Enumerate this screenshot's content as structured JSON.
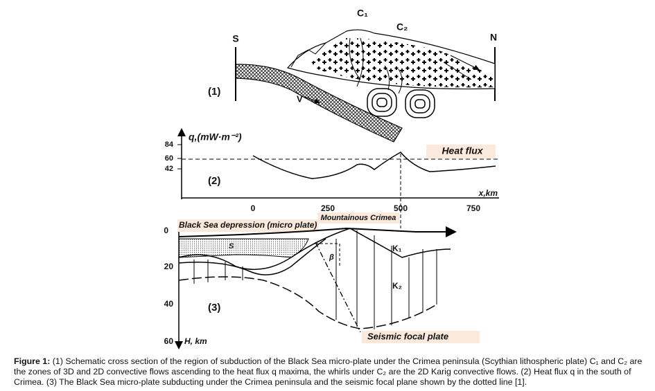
{
  "figure": {
    "panel1": {
      "label": "(1)",
      "south": "S",
      "north": "N",
      "c1": "C₁",
      "c2": "C₂",
      "velocity": "V"
    },
    "panel2": {
      "label": "(2)",
      "y_axis_label": "q,(mW·m⁻²)",
      "y_ticks": [
        84,
        60,
        42
      ],
      "x_axis_label": "x,km",
      "x_ticks": [
        0,
        250,
        500,
        750
      ],
      "curve_label": "Heat flux",
      "region_label": "Mountainous Crimea"
    },
    "panel3": {
      "label": "(3)",
      "y_axis_label": "H, km",
      "y_ticks": [
        0,
        20,
        40,
        60
      ],
      "top_label": "Black Sea depression (micro plate)",
      "sediment": "S",
      "k1": "K₁",
      "k2": "K₂",
      "angle": "β",
      "plane_label": "Seismic focal plate"
    }
  },
  "caption": {
    "label": "Figure 1:",
    "text": "(1) Schematic cross section of the region of subduction of the Black Sea micro-plate under the Crimea peninsula (Scythian lithospheric plate) C₁ and C₂ are the zones of 3D and 2D convective flows ascending to the heat flux q maxima, the whirls under C₂ are the 2D Karig convective flows. (2) Heat flux q in the south of Crimea. (3) The Black Sea micro-plate subducting under the Crimea peninsula and the seismic focal plane shown by the dotted line [1]."
  }
}
